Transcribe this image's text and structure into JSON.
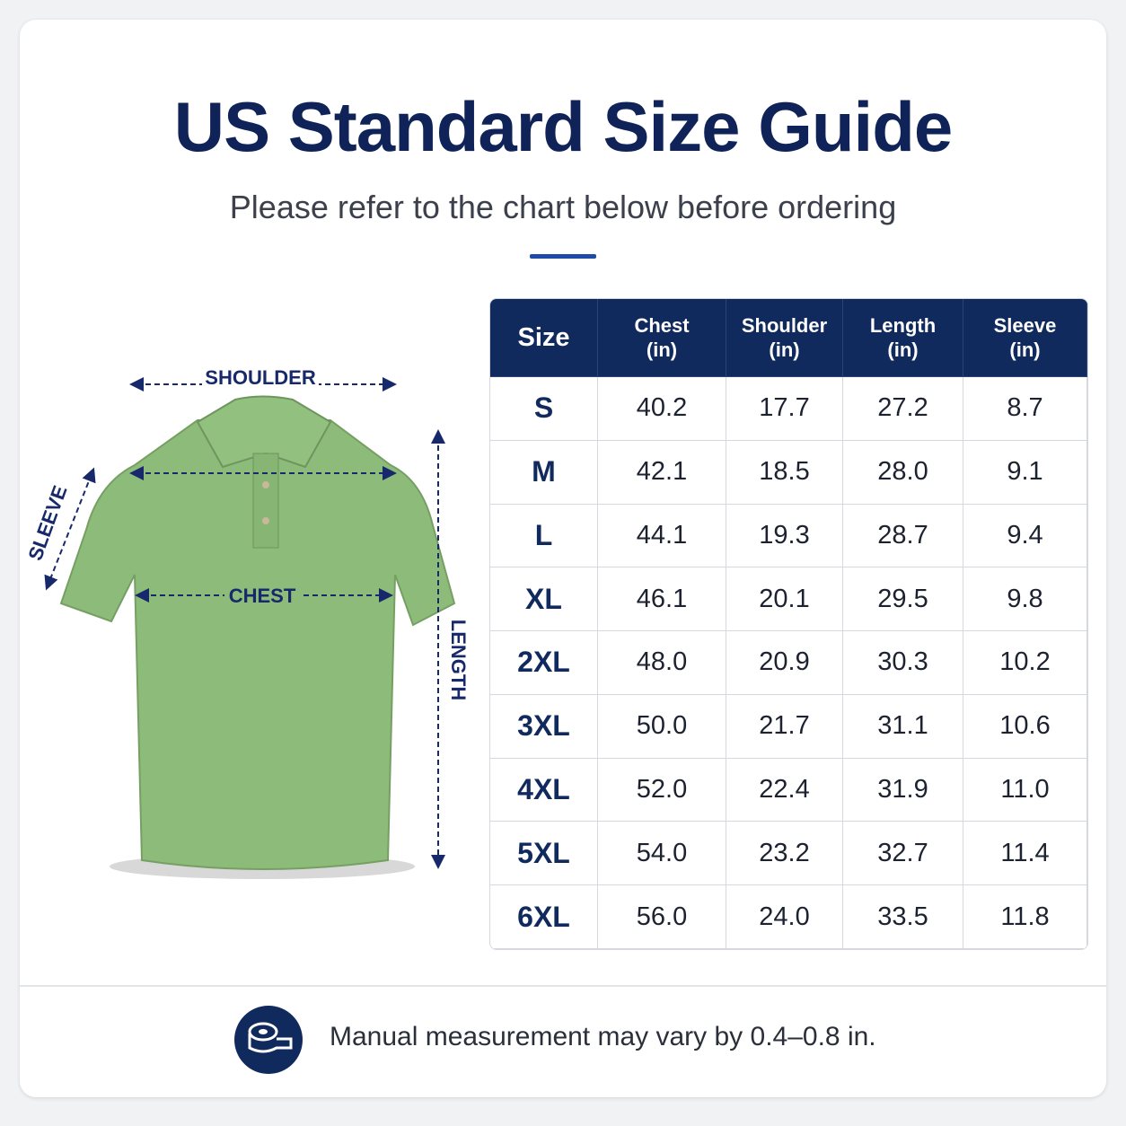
{
  "header": {
    "title": "US Standard Size Guide",
    "subtitle": "Please refer to the chart below before ordering"
  },
  "diagram": {
    "shoulder": "SHOULDER",
    "chest": "CHEST",
    "sleeve": "SLEEVE",
    "length": "LENGTH"
  },
  "table": {
    "columns": [
      {
        "name": "Size"
      },
      {
        "name": "Chest",
        "unit": "(in)"
      },
      {
        "name": "Shoulder",
        "unit": "(in)"
      },
      {
        "name": "Length",
        "unit": "(in)"
      },
      {
        "name": "Sleeve",
        "unit": "(in)"
      }
    ],
    "rows": [
      [
        "S",
        "40.2",
        "17.7",
        "27.2",
        "8.7"
      ],
      [
        "M",
        "42.1",
        "18.5",
        "28.0",
        "9.1"
      ],
      [
        "L",
        "44.1",
        "19.3",
        "28.7",
        "9.4"
      ],
      [
        "XL",
        "46.1",
        "20.1",
        "29.5",
        "9.8"
      ],
      [
        "2XL",
        "48.0",
        "20.9",
        "30.3",
        "10.2"
      ],
      [
        "3XL",
        "50.0",
        "21.7",
        "31.1",
        "10.6"
      ],
      [
        "4XL",
        "52.0",
        "22.4",
        "31.9",
        "11.0"
      ],
      [
        "5XL",
        "54.0",
        "23.2",
        "32.7",
        "11.4"
      ],
      [
        "6XL",
        "56.0",
        "24.0",
        "33.5",
        "11.8"
      ]
    ]
  },
  "footer": {
    "note": "Manual measurement may vary by 0.4–0.8 in."
  }
}
